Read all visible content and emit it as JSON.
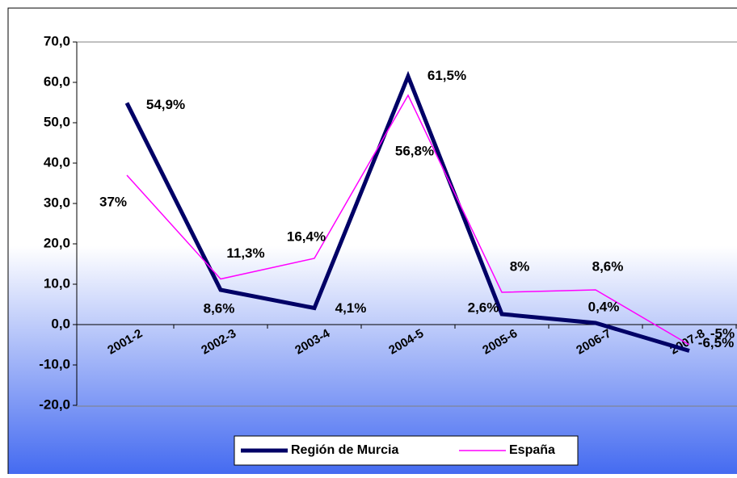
{
  "chart_data": {
    "type": "line",
    "categories": [
      "2001-2",
      "2002-3",
      "2003-4",
      "2004-5",
      "2005-6",
      "2006-7",
      "2007-8"
    ],
    "series": [
      {
        "name": "Región de Murcia",
        "color": "#000066",
        "values": [
          54.9,
          8.6,
          4.1,
          61.5,
          2.6,
          0.4,
          -6.5
        ],
        "value_labels": [
          "54,9%",
          "8,6%",
          "4,1%",
          "61,5%",
          "2,6%",
          "0,4%",
          "-6,5%"
        ]
      },
      {
        "name": "España",
        "color": "#ff00ff",
        "values": [
          37,
          11.3,
          16.4,
          56.8,
          8,
          8.6,
          -5
        ],
        "value_labels": [
          "37%",
          "11,3%",
          "16,4%",
          "56,8%",
          "8%",
          "8,6%",
          "-5%"
        ]
      }
    ],
    "ylim": [
      -20,
      70
    ],
    "yticks": [
      {
        "value": -20,
        "label": "-20,0"
      },
      {
        "value": -10,
        "label": "-10,0"
      },
      {
        "value": 0,
        "label": "0,0"
      },
      {
        "value": 10,
        "label": "10,0"
      },
      {
        "value": 20,
        "label": "20,0"
      },
      {
        "value": 30,
        "label": "30,0"
      },
      {
        "value": 40,
        "label": "40,0"
      },
      {
        "value": 50,
        "label": "50,0"
      },
      {
        "value": 60,
        "label": "60,0"
      },
      {
        "value": 70,
        "label": "70,0"
      }
    ],
    "grid": false,
    "legend": "bottom"
  }
}
